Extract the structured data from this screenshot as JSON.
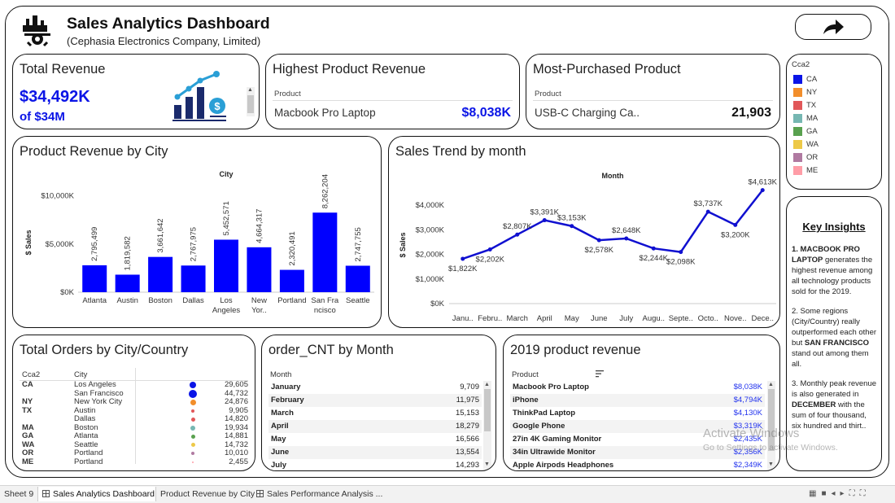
{
  "header": {
    "title": "Sales Analytics Dashboard",
    "subtitle": "(Cephasia Electronics Company, Limited)",
    "share_icon": "share-arrow-icon"
  },
  "kpis": {
    "total_revenue": {
      "title": "Total Revenue",
      "value": "$34,492K",
      "of": "of $34M",
      "icon": "revenue-growth-icon"
    },
    "highest_product": {
      "title": "Highest Product Revenue",
      "col": "Product",
      "product": "Macbook Pro Laptop",
      "value": "$8,038K"
    },
    "most_purchased": {
      "title": "Most-Purchased Product",
      "col": "Product",
      "product": "USB-C Charging Ca..",
      "value": "21,903"
    }
  },
  "legend": {
    "title": "Cca2",
    "items": [
      {
        "label": "CA",
        "color": "#0a14e6"
      },
      {
        "label": "NY",
        "color": "#f28e2b"
      },
      {
        "label": "TX",
        "color": "#e15759"
      },
      {
        "label": "MA",
        "color": "#76b7b2"
      },
      {
        "label": "GA",
        "color": "#59a14f"
      },
      {
        "label": "WA",
        "color": "#edc948"
      },
      {
        "label": "OR",
        "color": "#b07aa1"
      },
      {
        "label": "ME",
        "color": "#ff9da7"
      }
    ]
  },
  "insights": {
    "title": "Key Insights",
    "p1_bold": "1. MACBOOK PRO LAPTOP",
    "p1_rest": " generates the highest revenue among all technology products sold for the 2019.",
    "p2_a": "2. Some regions (City/Country) really outperformed each other but ",
    "p2_bold": "SAN FRANCISCO",
    "p2_b": " stand out among them all.",
    "p3_a": "3. Monthly peak revenue is also generated in ",
    "p3_bold": "DECEMBER",
    "p3_b": " with the sum of four thousand, six hundred and thirt.."
  },
  "city_chart": {
    "title": "Product Revenue by City",
    "header": "City",
    "ylabel": "$ Sales",
    "yticks": [
      "$10,000K",
      "$5,000K",
      "$0K"
    ]
  },
  "month_chart": {
    "title": "Sales Trend by month",
    "header": "Month",
    "ylabel": "$ Sales",
    "yticks": [
      "$4,000K",
      "$3,000K",
      "$2,000K",
      "$1,000K",
      "$0K"
    ]
  },
  "chart_data": [
    {
      "type": "bar",
      "title": "Product Revenue by City",
      "xlabel": "City",
      "ylabel": "$ Sales",
      "ylim": [
        0,
        12000
      ],
      "categories": [
        "Atlanta",
        "Austin",
        "Boston",
        "Dallas",
        "Los Angeles",
        "New York",
        "Portland",
        "San Francisco",
        "Seattle"
      ],
      "tick_labels": [
        [
          "Atlanta"
        ],
        [
          "Austin"
        ],
        [
          "Boston"
        ],
        [
          "Dallas"
        ],
        [
          "Los",
          "Angeles"
        ],
        [
          "New",
          "Yor.."
        ],
        [
          "Portland"
        ],
        [
          "San Fra",
          "ncisco"
        ],
        [
          "Seattle"
        ]
      ],
      "values": [
        2795.499,
        1819.582,
        3661.642,
        2767.975,
        5452.571,
        4664.317,
        2320.491,
        8262.204,
        2747.755
      ],
      "labels": [
        "2,795,499",
        "1,819,582",
        "3,661,642",
        "2,767,975",
        "5,452,571",
        "4,664,317",
        "2,320,491",
        "8,262,204",
        "2,747,755"
      ],
      "color": "#0000ff"
    },
    {
      "type": "line",
      "title": "Sales Trend by month",
      "xlabel": "Month",
      "ylabel": "$ Sales",
      "ylim": [
        0,
        4700
      ],
      "categories": [
        "Janu..",
        "Febru..",
        "March",
        "April",
        "May",
        "June",
        "July",
        "Augu..",
        "Septe..",
        "Octo..",
        "Nove..",
        "Dece.."
      ],
      "values": [
        1822,
        2202,
        2807,
        3391,
        3153,
        2578,
        2648,
        2244,
        2098,
        3737,
        3200,
        4613
      ],
      "labels": [
        "$1,822K",
        "$2,202K",
        "$2,807K",
        "$3,391K",
        "$3,153K",
        "$2,578K",
        "$2,648K",
        "$2,244K",
        "$2,098K",
        "$3,737K",
        "$3,200K",
        "$4,613K"
      ],
      "label_pos": [
        "below",
        "below",
        "above",
        "above",
        "above",
        "below",
        "above",
        "below",
        "below",
        "above",
        "below",
        "above"
      ],
      "color": "#1010d0"
    }
  ],
  "orders": {
    "title": "Total Orders by City/Country",
    "col1": "Cca2",
    "col2": "City",
    "rows": [
      {
        "cc": "CA",
        "city": "Los Angeles",
        "value": "29,605",
        "color": "#0a14e6",
        "r": 4
      },
      {
        "cc": "",
        "city": "San Francisco",
        "value": "44,732",
        "color": "#0a14e6",
        "r": 5
      },
      {
        "cc": "NY",
        "city": "New York City",
        "value": "24,876",
        "color": "#f28e2b",
        "r": 3.5
      },
      {
        "cc": "TX",
        "city": "Austin",
        "value": "9,905",
        "color": "#e15759",
        "r": 2
      },
      {
        "cc": "",
        "city": "Dallas",
        "value": "14,820",
        "color": "#e15759",
        "r": 2.5
      },
      {
        "cc": "MA",
        "city": "Boston",
        "value": "19,934",
        "color": "#76b7b2",
        "r": 3
      },
      {
        "cc": "GA",
        "city": "Atlanta",
        "value": "14,881",
        "color": "#59a14f",
        "r": 2.5
      },
      {
        "cc": "WA",
        "city": "Seattle",
        "value": "14,732",
        "color": "#edc948",
        "r": 2.5
      },
      {
        "cc": "OR",
        "city": "Portland",
        "value": "10,010",
        "color": "#b07aa1",
        "r": 2
      },
      {
        "cc": "ME",
        "city": "Portland",
        "value": "2,455",
        "color": "#ff9da7",
        "r": 1
      }
    ]
  },
  "order_cnt": {
    "title": "order_CNT by Month",
    "col": "Month",
    "rows": [
      {
        "m": "January",
        "v": "9,709"
      },
      {
        "m": "February",
        "v": "11,975"
      },
      {
        "m": "March",
        "v": "15,153"
      },
      {
        "m": "April",
        "v": "18,279"
      },
      {
        "m": "May",
        "v": "16,566"
      },
      {
        "m": "June",
        "v": "13,554"
      },
      {
        "m": "July",
        "v": "14,293"
      }
    ]
  },
  "product_rev": {
    "title": "2019 product revenue",
    "col": "Product",
    "sort_icon": "sort-icon",
    "rows": [
      {
        "p": "Macbook Pro Laptop",
        "v": "$8,038K"
      },
      {
        "p": "iPhone",
        "v": "$4,794K"
      },
      {
        "p": "ThinkPad Laptop",
        "v": "$4,130K"
      },
      {
        "p": "Google Phone",
        "v": "$3,319K"
      },
      {
        "p": "27in 4K Gaming Monitor",
        "v": "$2,435K"
      },
      {
        "p": "34in Ultrawide Monitor",
        "v": "$2,356K"
      },
      {
        "p": "Apple Airpods Headphones",
        "v": "$2,349K"
      }
    ]
  },
  "watermark": {
    "line1": "Activate Windows",
    "line2": "Go to Settings to activate Windows."
  },
  "tabs": [
    {
      "label": "Sheet 9",
      "icon": "",
      "active": false
    },
    {
      "label": "Sales Analytics Dashboard",
      "icon": "dashboard-icon",
      "active": true
    },
    {
      "label": "Product Revenue by City",
      "icon": "",
      "active": false
    },
    {
      "label": "Sales Performance Analysis ...",
      "icon": "dashboard-icon",
      "active": false
    }
  ]
}
